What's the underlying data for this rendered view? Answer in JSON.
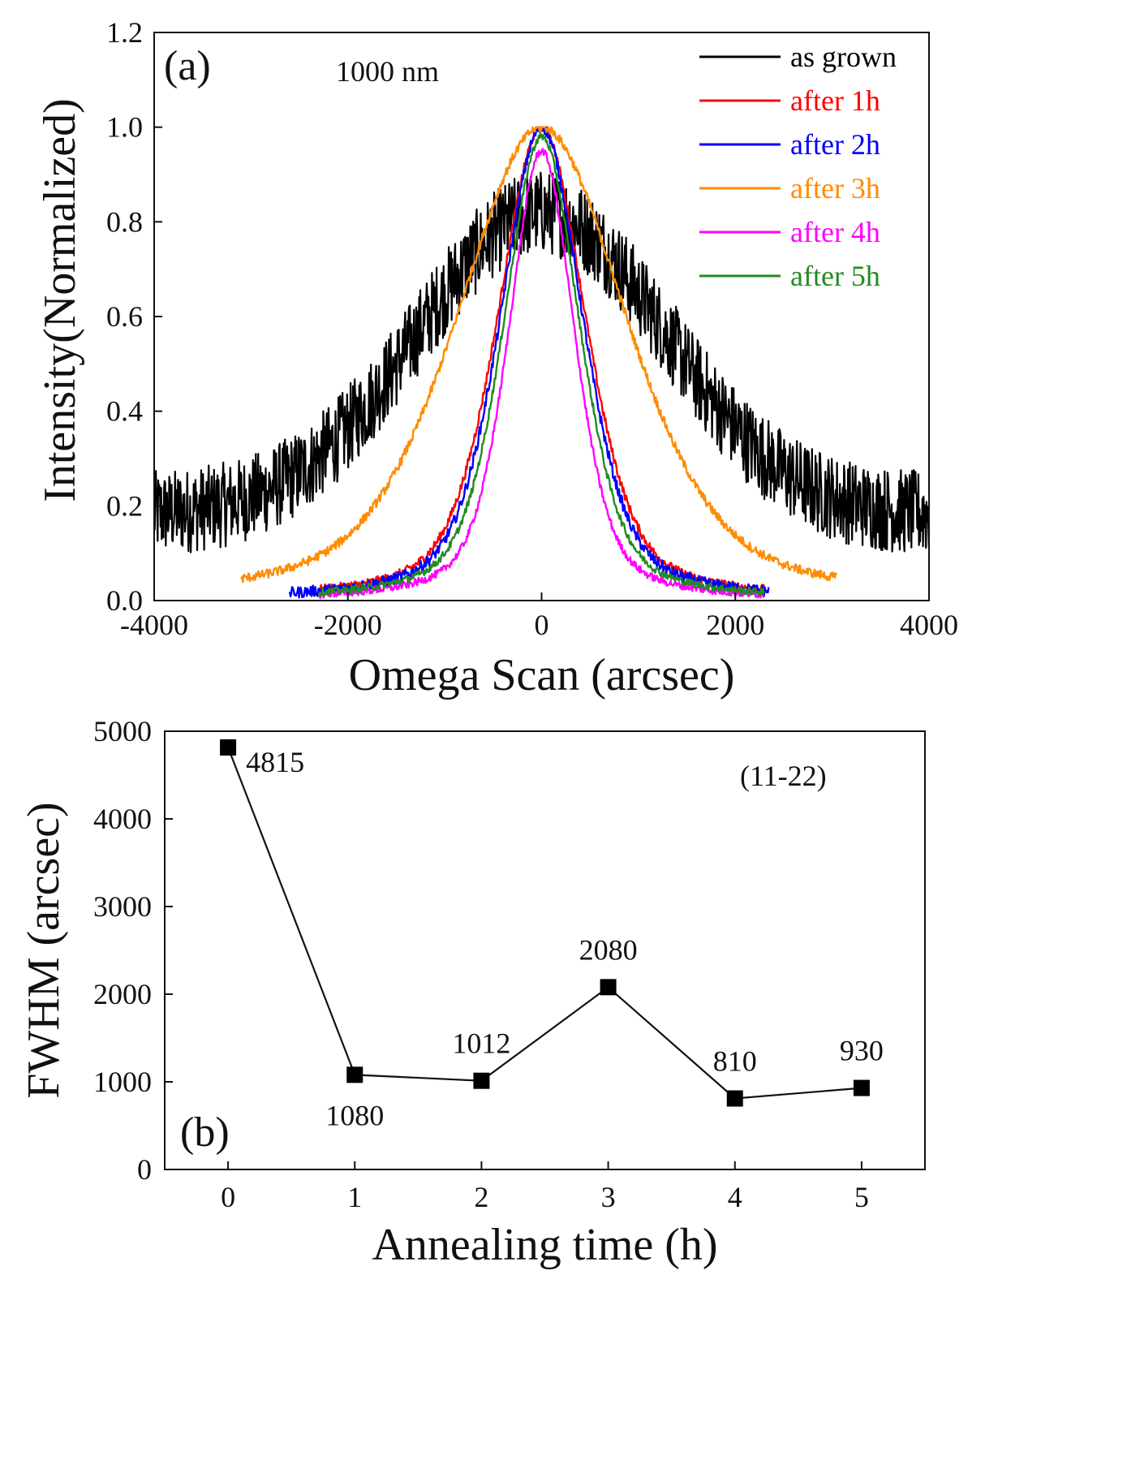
{
  "chart_data": [
    {
      "type": "line",
      "panel_label": "(a)",
      "annotation": "1000 nm",
      "xlabel": "Omega Scan (arcsec)",
      "ylabel": "Intensity(Normalized)",
      "xlim": [
        -4000,
        4000
      ],
      "ylim": [
        0.0,
        1.2
      ],
      "xticks": [
        "-4000",
        "-2000",
        "0",
        "2000",
        "4000"
      ],
      "yticks": [
        "0.0",
        "0.2",
        "0.4",
        "0.6",
        "0.8",
        "1.0",
        "1.2"
      ],
      "legend_position": "top-right",
      "series": [
        {
          "name": "as grown",
          "color": "#000000",
          "peak": 0.82,
          "fwhm": 4815,
          "x_range": [
            -4000,
            4000
          ],
          "noise": 0.09
        },
        {
          "name": "after 1h",
          "color": "#ff0000",
          "peak": 1.0,
          "fwhm": 1080,
          "x_range": [
            -2300,
            2300
          ],
          "noise": 0.012
        },
        {
          "name": "after 2h",
          "color": "#0000ff",
          "peak": 1.0,
          "fwhm": 1012,
          "x_range": [
            -2600,
            2350
          ],
          "noise": 0.015
        },
        {
          "name": "after 3h",
          "color": "#ff8c00",
          "peak": 1.0,
          "fwhm": 2080,
          "x_range": [
            -3100,
            3050
          ],
          "noise": 0.012
        },
        {
          "name": "after 4h",
          "color": "#ff00ff",
          "peak": 0.95,
          "fwhm": 810,
          "x_range": [
            -2300,
            2300
          ],
          "noise": 0.01
        },
        {
          "name": "after 5h",
          "color": "#228b22",
          "peak": 0.98,
          "fwhm": 930,
          "x_range": [
            -2300,
            2300
          ],
          "noise": 0.01
        }
      ]
    },
    {
      "type": "line",
      "panel_label": "(b)",
      "annotation": "(11-22)",
      "xlabel": "Annealing time (h)",
      "ylabel": "FWHM (arcsec)",
      "xlim": [
        -0.5,
        5.5
      ],
      "ylim": [
        0,
        5000
      ],
      "xticks": [
        "0",
        "1",
        "2",
        "3",
        "4",
        "5"
      ],
      "yticks": [
        "0",
        "1000",
        "2000",
        "3000",
        "4000",
        "5000"
      ],
      "x": [
        0,
        1,
        2,
        3,
        4,
        5
      ],
      "values": [
        4815,
        1080,
        1012,
        2080,
        810,
        930
      ],
      "data_labels": [
        "4815",
        "1080",
        "1012",
        "2080",
        "810",
        "930"
      ]
    }
  ]
}
